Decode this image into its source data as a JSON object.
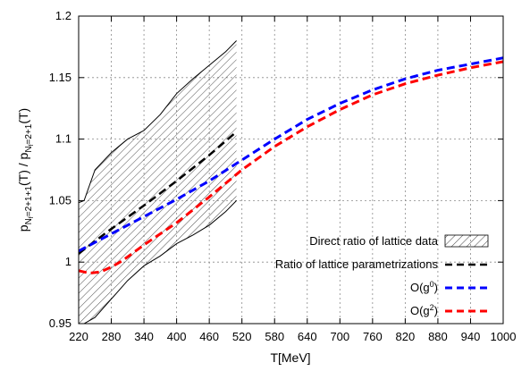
{
  "chart_data": {
    "type": "line",
    "title": "",
    "xlabel": "T[MeV]",
    "ylabel_parts": {
      "num_main": "p",
      "num_sub_main": "N",
      "num_sub_sub": "f",
      "num_sub_tail": "=2+1+1",
      "num_arg": "(T) / p",
      "den_sub_main": "N",
      "den_sub_sub": "f",
      "den_sub_tail": "=2+1",
      "den_arg": "(T)"
    },
    "xlim": [
      220,
      1000
    ],
    "ylim": [
      0.95,
      1.2
    ],
    "xticks": [
      220,
      280,
      340,
      400,
      460,
      520,
      580,
      640,
      700,
      760,
      820,
      880,
      940,
      1000
    ],
    "yticks": [
      {
        "value": 0.95,
        "label": "0.95"
      },
      {
        "value": 1.0,
        "label": "1"
      },
      {
        "value": 1.05,
        "label": "1.05"
      },
      {
        "value": 1.1,
        "label": "1.1"
      },
      {
        "value": 1.15,
        "label": "1.15"
      },
      {
        "value": 1.2,
        "label": "1.2"
      }
    ],
    "grid": true,
    "legend_position": "bottom-right",
    "band": {
      "name": "Direct ratio of lattice data",
      "x": [
        200,
        230,
        250,
        280,
        310,
        340,
        370,
        400,
        430,
        460,
        490,
        510
      ],
      "upper": [
        1.045,
        1.05,
        1.075,
        1.089,
        1.1,
        1.107,
        1.12,
        1.137,
        1.149,
        1.16,
        1.171,
        1.18
      ],
      "lower": [
        0.94,
        0.95,
        0.955,
        0.97,
        0.985,
        0.997,
        1.005,
        1.015,
        1.022,
        1.03,
        1.041,
        1.05
      ]
    },
    "series": [
      {
        "name": "Ratio of lattice parametrizations",
        "color": "#000000",
        "style": "dashed",
        "x": [
          220,
          280,
          340,
          400,
          460,
          510
        ],
        "y": [
          1.007,
          1.027,
          1.046,
          1.066,
          1.087,
          1.106
        ]
      },
      {
        "name": "O(g⁰)",
        "color": "#0000ff",
        "style": "dashed",
        "x": [
          220,
          280,
          340,
          400,
          460,
          520,
          580,
          640,
          700,
          760,
          820,
          880,
          940,
          1000
        ],
        "y": [
          1.009,
          1.023,
          1.037,
          1.051,
          1.066,
          1.083,
          1.1,
          1.116,
          1.129,
          1.14,
          1.149,
          1.156,
          1.161,
          1.166
        ]
      },
      {
        "name": "O(g²)",
        "color": "#ff0000",
        "style": "dashed",
        "x": [
          220,
          240,
          260,
          280,
          300,
          340,
          400,
          460,
          520,
          580,
          640,
          700,
          760,
          820,
          880,
          940,
          1000
        ],
        "y": [
          0.993,
          0.991,
          0.992,
          0.996,
          1.001,
          1.014,
          1.032,
          1.053,
          1.075,
          1.094,
          1.11,
          1.124,
          1.136,
          1.145,
          1.152,
          1.158,
          1.163
        ]
      }
    ],
    "legend_entries": [
      {
        "label": "Direct ratio of lattice data",
        "kind": "band"
      },
      {
        "label": "Ratio of lattice parametrizations",
        "kind": "line",
        "color": "#000000"
      },
      {
        "label_main": "O(g",
        "label_sup": "0",
        "label_tail": ")",
        "kind": "line",
        "color": "#0000ff"
      },
      {
        "label_main": "O(g",
        "label_sup": "2",
        "label_tail": ")",
        "kind": "line",
        "color": "#ff0000"
      }
    ]
  }
}
